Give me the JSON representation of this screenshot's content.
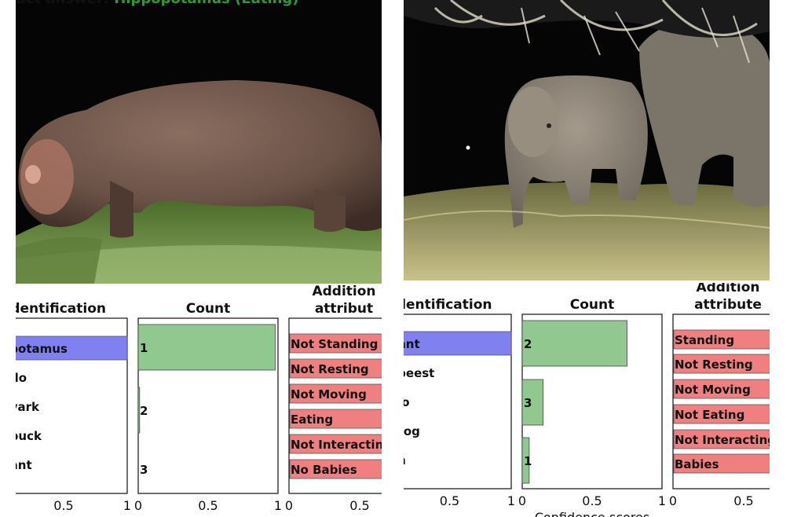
{
  "page": {
    "left_title_prefix": "uct answer:",
    "left_title_answer": "Hippopotamus (Eating)",
    "bottom_label": "Confidence scores"
  },
  "colors": {
    "identification_bar": "#8080f0",
    "count_bar": "#90c890",
    "attribute_box": "#f08080",
    "title_answer": "#2e9a2e"
  },
  "chart_data": [
    {
      "type": "bar",
      "panel": "left",
      "orientation": "horizontal",
      "title": "Identification",
      "categories": [
        "Hippopotamus",
        "Buffalo",
        "Aardvark",
        "Bushbuck",
        "Elephant"
      ],
      "visible_labels": [
        "opotamus",
        "falo",
        "dvark",
        "hbuck",
        "hant"
      ],
      "values": [
        1.0,
        0,
        0,
        0,
        0
      ],
      "xlim": [
        0,
        1
      ],
      "xticks": [
        "0.5",
        "1"
      ]
    },
    {
      "type": "bar",
      "panel": "left",
      "orientation": "horizontal",
      "title": "Count",
      "categories": [
        "1",
        "2",
        "3"
      ],
      "values": [
        0.98,
        0.01,
        0.0
      ],
      "xlim": [
        0,
        1
      ],
      "xticks": [
        "0",
        "0.5",
        "1"
      ]
    },
    {
      "type": "table",
      "panel": "left",
      "title": [
        "Addition",
        "attribut"
      ],
      "items": [
        "Not Standing",
        "Not Resting",
        "Not Moving",
        "Eating",
        "Not Interacting",
        "No Babies"
      ],
      "xticks": [
        "0",
        "0.5"
      ]
    },
    {
      "type": "bar",
      "panel": "right",
      "orientation": "horizontal",
      "title": "Identification",
      "categories": [
        "Elephant",
        "Wildebeest",
        "Buffalo",
        "Warthog",
        "Human"
      ],
      "visible_labels": [
        "hant",
        "ebeest",
        "alo",
        "thog",
        "an"
      ],
      "values": [
        1.0,
        0,
        0,
        0,
        0
      ],
      "xlim": [
        0,
        1
      ],
      "xticks": [
        "0.5",
        "1"
      ]
    },
    {
      "type": "bar",
      "panel": "right",
      "orientation": "horizontal",
      "title": "Count",
      "categories": [
        "2",
        "3",
        "1"
      ],
      "values": [
        0.75,
        0.15,
        0.05
      ],
      "xlim": [
        0,
        1
      ],
      "xticks": [
        "0",
        "0.5",
        "1"
      ]
    },
    {
      "type": "table",
      "panel": "right",
      "title": [
        "Addition",
        "attribute"
      ],
      "items": [
        "Standing",
        "Not Resting",
        "Not Moving",
        "Not Eating",
        "Not Interacting",
        "Babies"
      ],
      "xticks": [
        "0",
        "0.5"
      ]
    }
  ]
}
